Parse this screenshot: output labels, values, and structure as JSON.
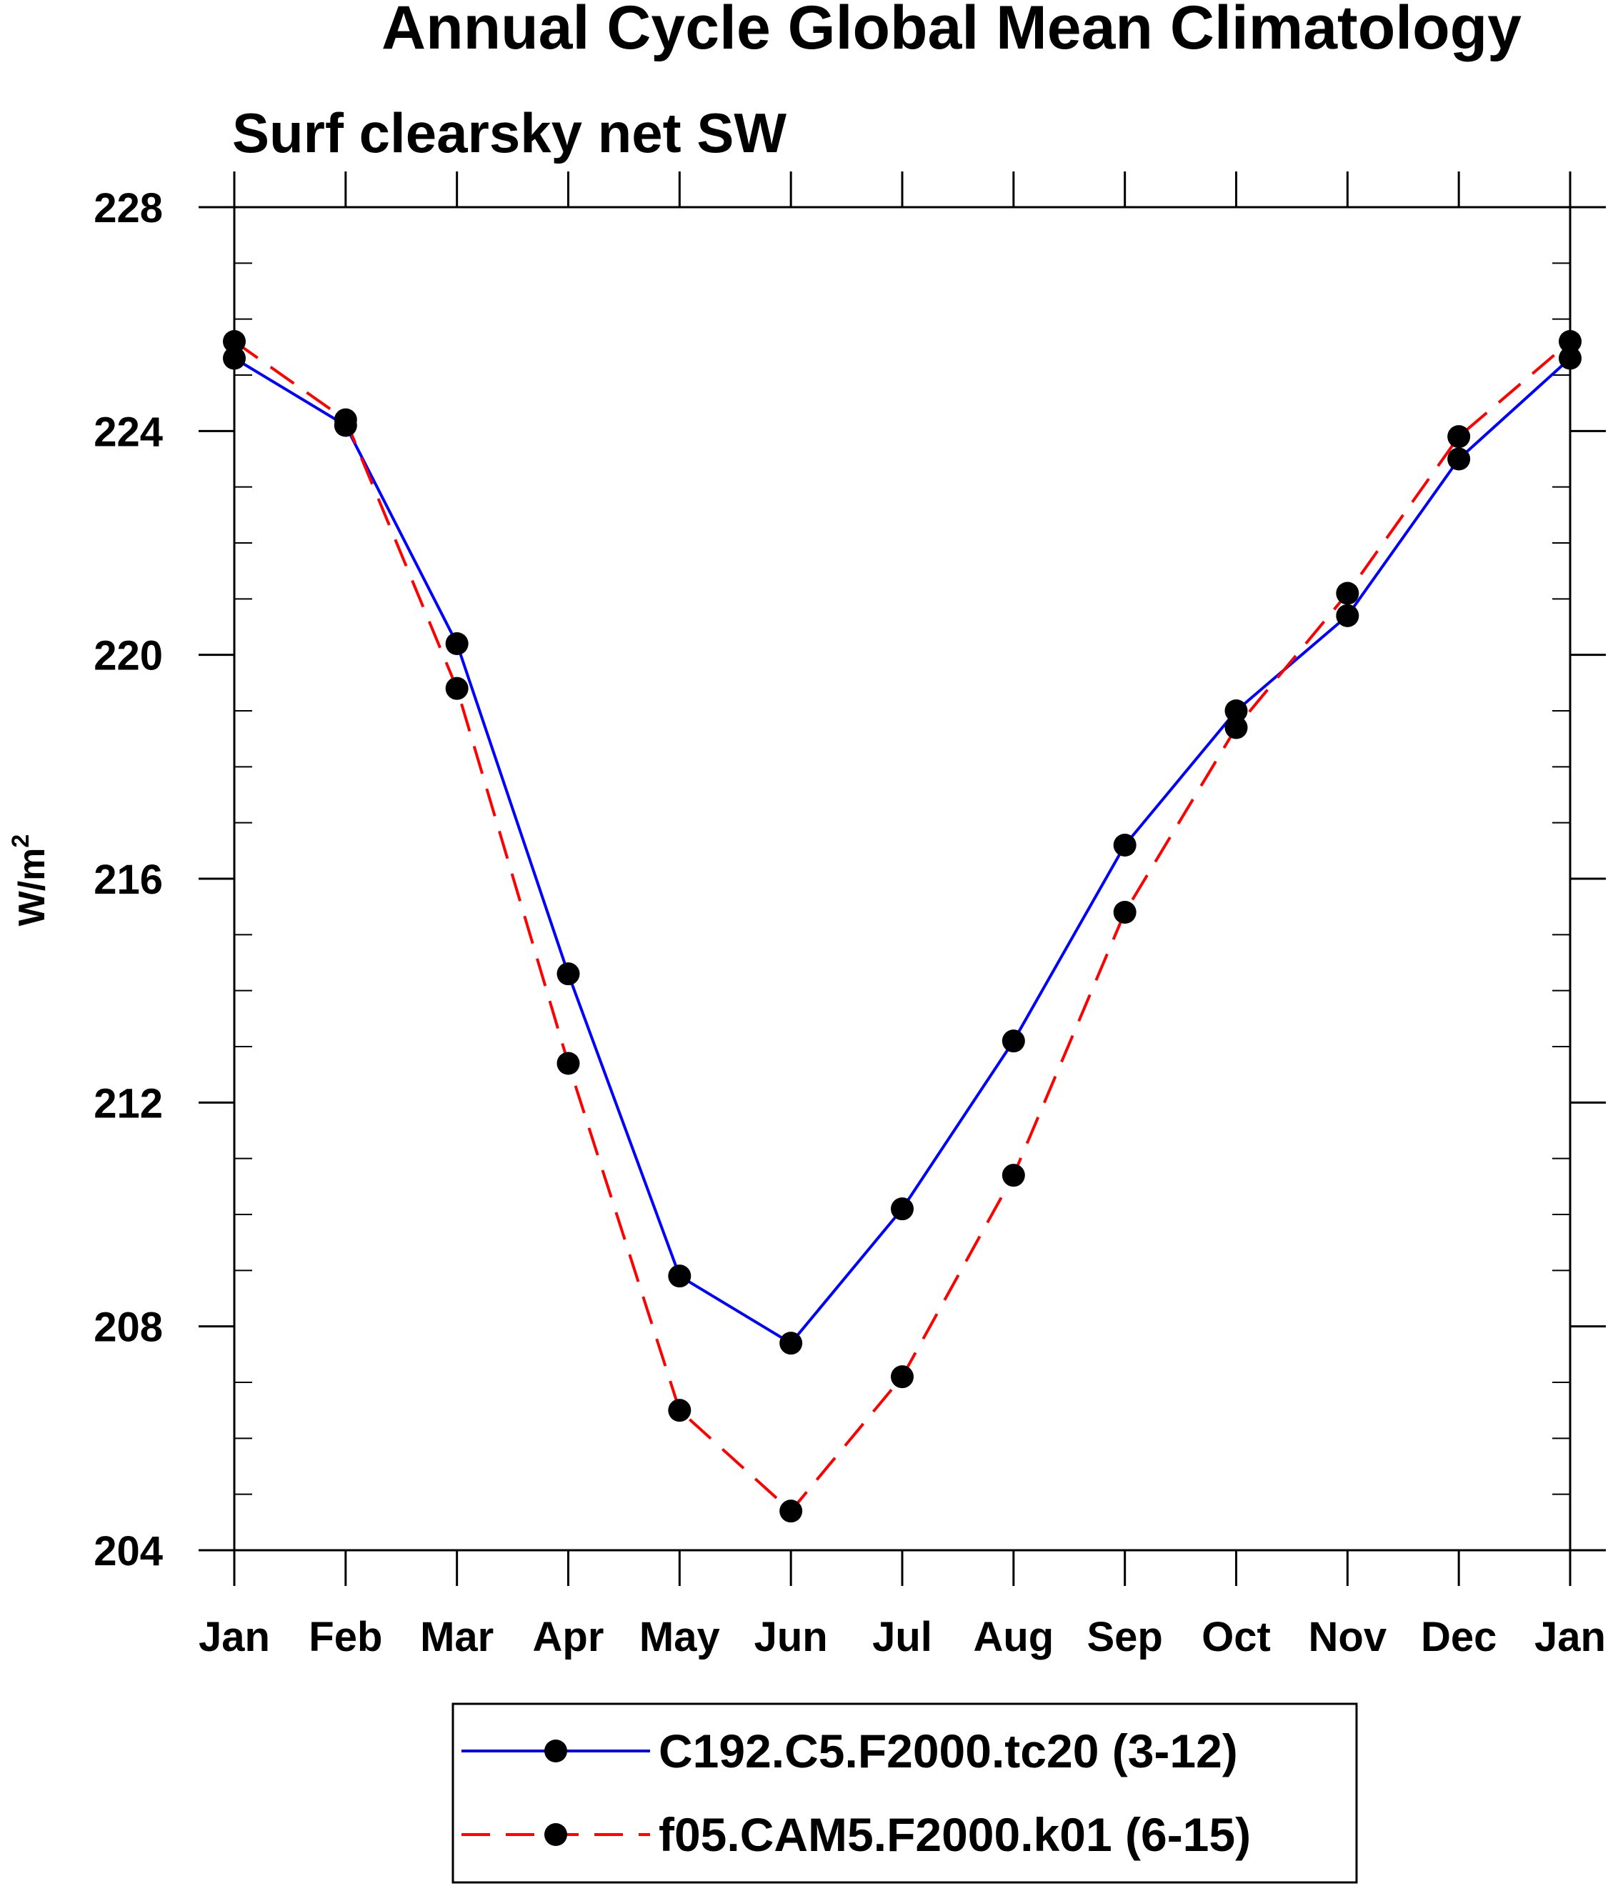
{
  "chart_data": {
    "type": "line",
    "title": "Annual Cycle Global Mean Climatology",
    "subtitle": "Surf clearsky net SW",
    "ylabel_base": "W/m",
    "ylabel_sup": "2",
    "xlabel": "",
    "categories": [
      "Jan",
      "Feb",
      "Mar",
      "Apr",
      "May",
      "Jun",
      "Jul",
      "Aug",
      "Sep",
      "Oct",
      "Nov",
      "Dec",
      "Jan"
    ],
    "yticks": [
      204,
      208,
      212,
      216,
      220,
      224,
      228
    ],
    "ylim": [
      204,
      228
    ],
    "grid": false,
    "legend_position": "bottom",
    "series": [
      {
        "name": "C192.C5.F2000.tc20 (3-12)",
        "color": "#0000ff",
        "dash": "solid",
        "values": [
          225.3,
          224.1,
          220.2,
          214.3,
          208.9,
          207.7,
          210.1,
          213.1,
          216.6,
          219.0,
          220.7,
          223.5,
          225.3
        ]
      },
      {
        "name": "f05.CAM5.F2000.k01 (6-15)",
        "color": "#ff0000",
        "dash": "dashed",
        "values": [
          225.6,
          224.2,
          219.4,
          212.7,
          206.5,
          204.7,
          207.1,
          210.7,
          215.4,
          218.7,
          221.1,
          223.9,
          225.6
        ]
      }
    ]
  }
}
